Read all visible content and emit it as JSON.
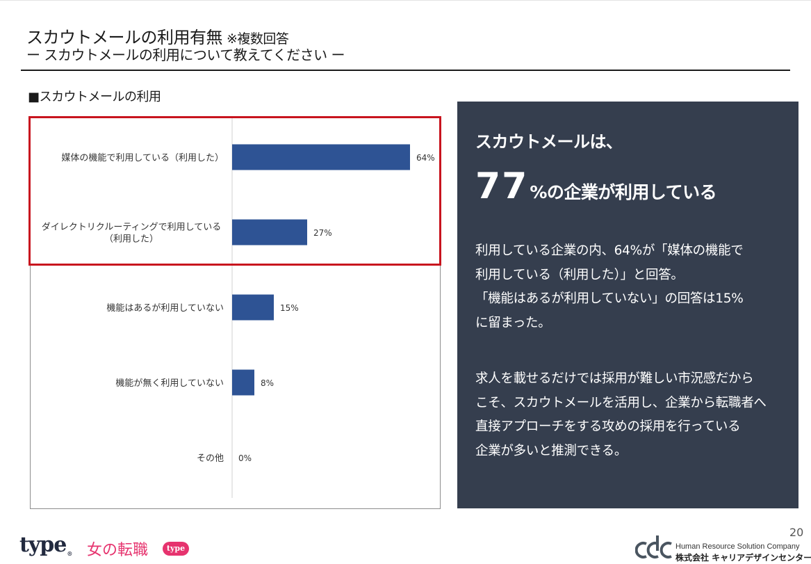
{
  "header": {
    "title": "スカウトメールの利用有無",
    "title_note": "※複数回答",
    "subtitle": "ー スカウトメールの利用について教えてください ー"
  },
  "section_label": "■スカウトメールの利用",
  "chart_data": {
    "type": "bar",
    "orientation": "horizontal",
    "categories": [
      "媒体の機能で利用している（利用した）",
      "ダイレクトリクルーティングで利用している（利用した）",
      "機能はあるが利用していない",
      "機能が無く利用していない",
      "その他"
    ],
    "category_lines": [
      [
        "媒体の機能で利用している（利用した）"
      ],
      [
        "ダイレクトリクルーティングで利用している",
        "（利用した）"
      ],
      [
        "機能はあるが利用していない"
      ],
      [
        "機能が無く利用していない"
      ],
      [
        "その他"
      ]
    ],
    "values": [
      64,
      27,
      15,
      8,
      0
    ],
    "value_labels": [
      "64%",
      "27%",
      "15%",
      "8%",
      "0%"
    ],
    "xlim": [
      0,
      100
    ],
    "grid": false,
    "bar_color": "#2e5394",
    "highlight_color": "#c8141e",
    "title": "",
    "xlabel": "",
    "ylabel": ""
  },
  "panel": {
    "heading": "スカウトメールは、",
    "big_number": "77",
    "big_rest": "%の企業が利用している",
    "para1": [
      "利用している企業の内、64%が「媒体の機能で",
      "利用している（利用した）」と回答。",
      "「機能はあるが利用していない」の回答は15%",
      "に留まった。"
    ],
    "para2": [
      "求人を載せるだけでは採用が難しい市況感だから",
      "こそ、スカウトメールを活用し、企業から転職者へ",
      "直接アプローチをする攻めの採用を行っている",
      "企業が多いと推測できる。"
    ],
    "bg_color": "#353e4e"
  },
  "footer": {
    "page_number": "20",
    "logo_type": "type",
    "logo_type_mark": "®",
    "logo_onna": "女の転職",
    "logo_pill": "type",
    "company_en": "Human Resource Solution Company",
    "company_jp": "株式会社 キャリアデザインセンター",
    "accent_pink": "#e6336e"
  }
}
